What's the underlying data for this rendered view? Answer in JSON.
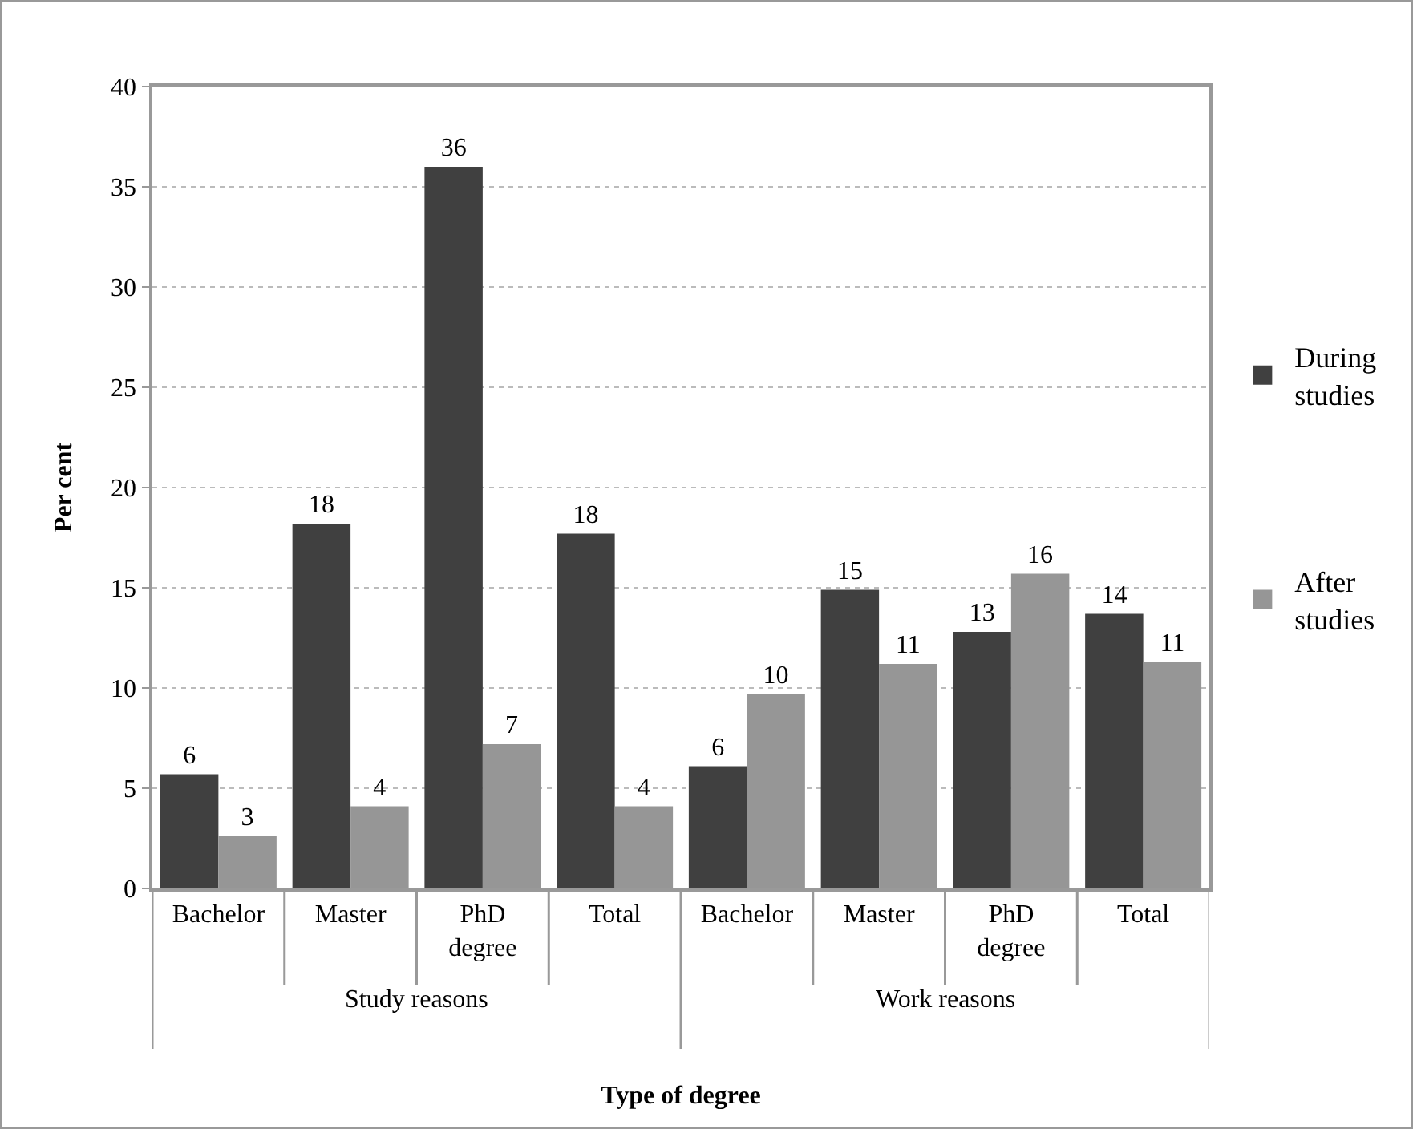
{
  "chart_data": {
    "type": "bar",
    "xlabel": "Type of degree",
    "ylabel": "Per cent",
    "categories": [
      "Bachelor",
      "Master",
      "PhD degree",
      "Total",
      "Bachelor",
      "Master",
      "PhD degree",
      "Total"
    ],
    "series": [
      {
        "name": "During studies",
        "color": "#404040",
        "values": [
          5.7,
          18.2,
          36.0,
          17.7,
          6.1,
          14.9,
          12.8,
          13.7
        ],
        "value_labels": [
          "6",
          "18",
          "36",
          "18",
          "6",
          "15",
          "13",
          "14"
        ]
      },
      {
        "name": "After studies",
        "color": "#969696",
        "values": [
          2.6,
          4.1,
          7.2,
          4.1,
          9.7,
          11.2,
          15.7,
          11.3
        ],
        "value_labels": [
          "3",
          "4",
          "7",
          "4",
          "10",
          "11",
          "16",
          "11"
        ]
      }
    ],
    "annotations": [
      "Study reasons",
      "Work reasons"
    ],
    "ylim": [
      0,
      40
    ],
    "yticks": [
      0,
      5,
      10,
      15,
      20,
      25,
      30,
      35,
      40
    ],
    "grid": "y",
    "legend": "right"
  }
}
